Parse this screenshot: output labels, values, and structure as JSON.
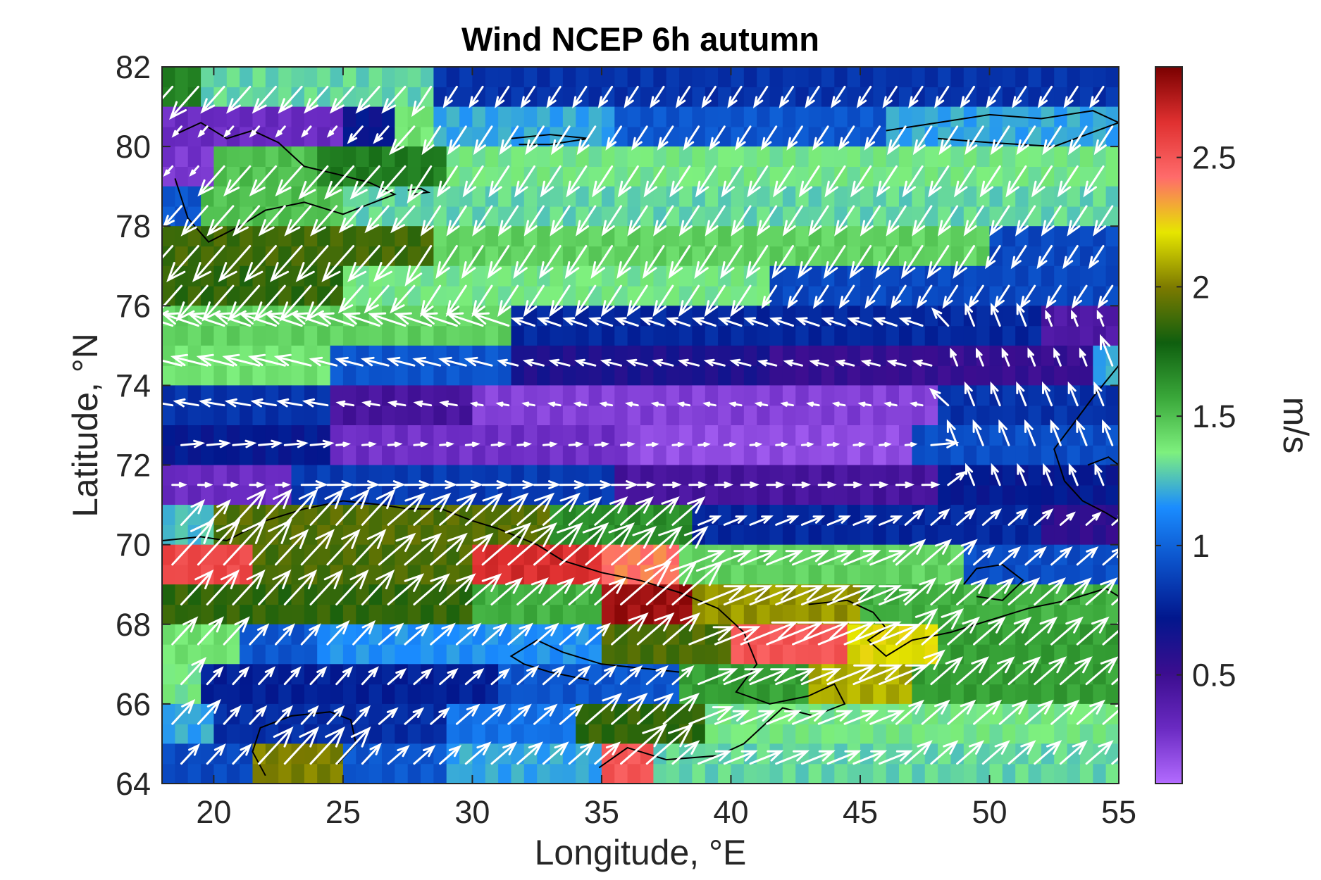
{
  "chart_data": {
    "type": "heatmap",
    "title": "Wind NCEP 6h autumn",
    "xlabel": "Longitude, °E",
    "ylabel": "Latitude, °N",
    "colorbar_label": "m/s",
    "xlim": [
      18,
      55
    ],
    "ylim": [
      64,
      82
    ],
    "xticks": [
      "20",
      "25",
      "30",
      "35",
      "40",
      "45",
      "50",
      "55"
    ],
    "yticks": [
      "64",
      "66",
      "68",
      "70",
      "72",
      "74",
      "76",
      "78",
      "80",
      "82"
    ],
    "colorbar_ticks": [
      "0.5",
      "1",
      "1.5",
      "2",
      "2.5"
    ],
    "colorbar_range": [
      0.08,
      2.85
    ],
    "colormap": [
      "#b36bff",
      "#6a2ac2",
      "#3b0d8f",
      "#02178d",
      "#0b50c8",
      "#1a8cff",
      "#7ef07e",
      "#3aa83a",
      "#0f5f0f",
      "#7c7a00",
      "#e6e600",
      "#ff6b6b",
      "#e03030",
      "#7a0000"
    ],
    "grid": false,
    "vector_color": "#ffffff",
    "coastline_color": "#000000",
    "rows": [
      {
        "lat": [
          81,
          82
        ],
        "cells": [
          [
            18,
            19.5,
            1.68
          ],
          [
            19.5,
            28.5,
            1.3
          ],
          [
            28.5,
            55,
            0.82
          ]
        ]
      },
      {
        "lat": [
          80,
          81
        ],
        "cells": [
          [
            18,
            25,
            0.3
          ],
          [
            25,
            27,
            0.7
          ],
          [
            27,
            28.5,
            1.4
          ],
          [
            28.5,
            35.5,
            1.2
          ],
          [
            35.5,
            46,
            0.95
          ],
          [
            46,
            55,
            1.2
          ]
        ]
      },
      {
        "lat": [
          79,
          80
        ],
        "cells": [
          [
            18,
            20,
            0.25
          ],
          [
            20,
            24,
            1.5
          ],
          [
            24,
            29,
            1.7
          ],
          [
            29,
            55,
            1.35
          ]
        ]
      },
      {
        "lat": [
          78,
          79
        ],
        "cells": [
          [
            18,
            19.5,
            0.95
          ],
          [
            19.5,
            25,
            1.5
          ],
          [
            25,
            55,
            1.3
          ]
        ]
      },
      {
        "lat": [
          77,
          78
        ],
        "cells": [
          [
            18,
            28.5,
            1.88
          ],
          [
            28.5,
            50,
            1.45
          ],
          [
            50,
            55,
            0.9
          ]
        ]
      },
      {
        "lat": [
          76,
          77
        ],
        "cells": [
          [
            18,
            25,
            1.85
          ],
          [
            25,
            41.5,
            1.35
          ],
          [
            41.5,
            55,
            0.9
          ]
        ]
      },
      {
        "lat": [
          75,
          76
        ],
        "cells": [
          [
            18,
            31.5,
            1.45
          ],
          [
            31.5,
            52,
            0.78
          ],
          [
            52,
            55,
            0.42
          ]
        ]
      },
      {
        "lat": [
          74,
          75
        ],
        "cells": [
          [
            18,
            24.5,
            1.4
          ],
          [
            24.5,
            31.5,
            0.95
          ],
          [
            31.5,
            41.5,
            0.62
          ],
          [
            41.5,
            54,
            0.52
          ],
          [
            54,
            55,
            1.2
          ]
        ]
      },
      {
        "lat": [
          73,
          74
        ],
        "cells": [
          [
            18,
            24.5,
            0.82
          ],
          [
            24.5,
            30,
            0.45
          ],
          [
            30,
            48,
            0.22
          ],
          [
            48,
            55,
            0.82
          ]
        ]
      },
      {
        "lat": [
          72,
          73
        ],
        "cells": [
          [
            18,
            24.5,
            0.72
          ],
          [
            24.5,
            36,
            0.28
          ],
          [
            36,
            47,
            0.18
          ],
          [
            47,
            55,
            0.92
          ]
        ]
      },
      {
        "lat": [
          71,
          72
        ],
        "cells": [
          [
            18,
            23,
            0.3
          ],
          [
            23,
            35.5,
            0.85
          ],
          [
            35.5,
            48,
            0.45
          ],
          [
            48,
            55,
            0.72
          ]
        ]
      },
      {
        "lat": [
          70,
          71
        ],
        "cells": [
          [
            18,
            20,
            1.25
          ],
          [
            20,
            33,
            1.92
          ],
          [
            33,
            38.5,
            1.65
          ],
          [
            38.5,
            52,
            0.78
          ],
          [
            52,
            55,
            0.55
          ]
        ]
      },
      {
        "lat": [
          69,
          70
        ],
        "cells": [
          [
            18,
            21.5,
            2.55
          ],
          [
            21.5,
            30,
            1.9
          ],
          [
            30,
            35,
            2.65
          ],
          [
            35,
            38,
            2.4
          ],
          [
            38,
            49,
            1.45
          ],
          [
            49,
            55,
            0.92
          ]
        ]
      },
      {
        "lat": [
          68,
          69
        ],
        "cells": [
          [
            18,
            30,
            1.85
          ],
          [
            30,
            35,
            1.55
          ],
          [
            35,
            38.5,
            2.78
          ],
          [
            38.5,
            45,
            2.05
          ],
          [
            45,
            55,
            1.55
          ]
        ]
      },
      {
        "lat": [
          67,
          68
        ],
        "cells": [
          [
            18,
            21,
            1.4
          ],
          [
            21,
            24,
            0.95
          ],
          [
            24,
            35,
            1.15
          ],
          [
            35,
            40,
            1.9
          ],
          [
            40,
            44.5,
            2.5
          ],
          [
            44.5,
            48,
            2.2
          ],
          [
            48,
            55,
            1.6
          ]
        ]
      },
      {
        "lat": [
          66,
          67
        ],
        "cells": [
          [
            18,
            19.5,
            1.35
          ],
          [
            19.5,
            31,
            0.75
          ],
          [
            31,
            38,
            0.95
          ],
          [
            38,
            43,
            1.6
          ],
          [
            43,
            47,
            2.1
          ],
          [
            47,
            55,
            1.6
          ]
        ]
      },
      {
        "lat": [
          65,
          66
        ],
        "cells": [
          [
            18,
            20,
            1.2
          ],
          [
            20,
            29,
            0.8
          ],
          [
            29,
            34,
            1.05
          ],
          [
            34,
            39,
            1.85
          ],
          [
            39,
            55,
            1.35
          ]
        ]
      },
      {
        "lat": [
          64,
          65
        ],
        "cells": [
          [
            18,
            21.5,
            0.9
          ],
          [
            21.5,
            25,
            2.0
          ],
          [
            25,
            29,
            0.95
          ],
          [
            29,
            35,
            1.2
          ],
          [
            35,
            37,
            2.5
          ],
          [
            37,
            55,
            1.3
          ]
        ]
      }
    ],
    "flow_centers": [
      {
        "lon": 38,
        "lat": 73.2,
        "type": "cyclone"
      }
    ]
  }
}
